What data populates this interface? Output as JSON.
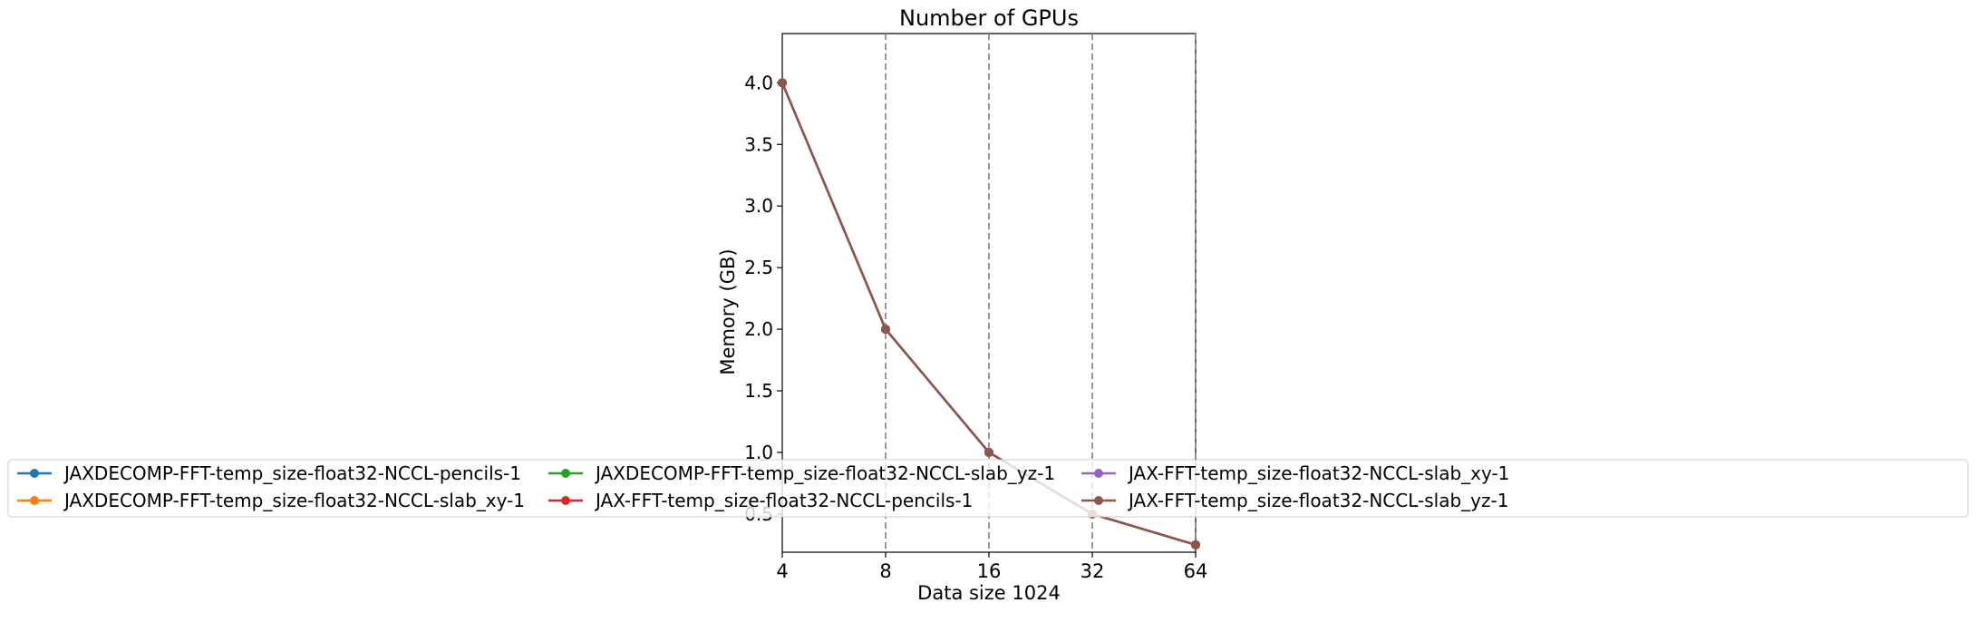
{
  "chart_data": {
    "type": "line",
    "title": "Number of GPUs",
    "xlabel": "Data size 1024",
    "ylabel": "Memory (GB)",
    "x": [
      4,
      8,
      16,
      32,
      64
    ],
    "x_tick_labels": [
      "4",
      "8",
      "16",
      "32",
      "64"
    ],
    "x_scale": "log2",
    "xlim": [
      4,
      64
    ],
    "ylim": [
      0.19,
      4.4
    ],
    "y_ticks": [
      0.5,
      1.0,
      1.5,
      2.0,
      2.5,
      3.0,
      3.5,
      4.0
    ],
    "y_tick_labels": [
      "0.5",
      "1.0",
      "1.5",
      "2.0",
      "2.5",
      "3.0",
      "3.5",
      "4.0"
    ],
    "vertical_dashed_lines_at": [
      8,
      16,
      32,
      64
    ],
    "grid": false,
    "legend_placement": "bottom, spanning the figure, 4 columns",
    "series": [
      {
        "name": "JAXDECOMP-FFT-temp_size-float32-NCCL-pencils-1",
        "color": "#1f77b4",
        "values": [
          4.0,
          2.0,
          1.0,
          0.5,
          0.25
        ]
      },
      {
        "name": "JAXDECOMP-FFT-temp_size-float32-NCCL-slab_xy-1",
        "color": "#ff7f0e",
        "values": [
          4.0,
          2.0,
          1.0,
          0.5,
          0.25
        ]
      },
      {
        "name": "JAXDECOMP-FFT-temp_size-float32-NCCL-slab_yz-1",
        "color": "#2ca02c",
        "values": [
          4.0,
          2.0,
          1.0,
          0.5,
          0.25
        ]
      },
      {
        "name": "JAX-FFT-temp_size-float32-NCCL-pencils-1",
        "color": "#d62728",
        "values": [
          4.0,
          2.0,
          1.0,
          0.5,
          0.25
        ]
      },
      {
        "name": "JAX-FFT-temp_size-float32-NCCL-slab_xy-1",
        "color": "#9467bd",
        "values": [
          4.0,
          2.0,
          1.0,
          0.5,
          0.25
        ]
      },
      {
        "name": "JAX-FFT-temp_size-float32-NCCL-slab_yz-1",
        "color": "#8c564b",
        "values": [
          4.0,
          2.0,
          1.0,
          0.5,
          0.25
        ]
      }
    ]
  }
}
